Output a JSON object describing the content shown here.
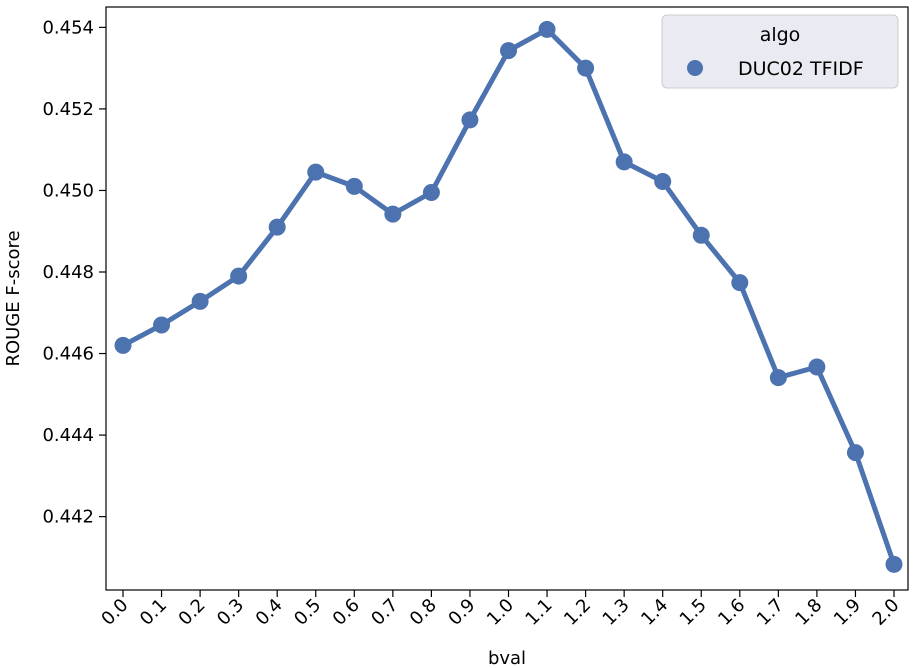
{
  "chart_data": {
    "type": "line",
    "xlabel": "bval",
    "ylabel": "ROUGE F-score",
    "x_tick_labels": [
      "0.0",
      "0.1",
      "0.2",
      "0.3",
      "0.4",
      "0.5",
      "0.6",
      "0.7",
      "0.8",
      "0.9",
      "1.0",
      "1.1",
      "1.2",
      "1.3",
      "1.4",
      "1.5",
      "1.6",
      "1.7",
      "1.8",
      "1.9",
      "2.0"
    ],
    "y_tick_labels": [
      "0.442",
      "0.444",
      "0.446",
      "0.448",
      "0.450",
      "0.452",
      "0.454"
    ],
    "y_ticks": [
      0.442,
      0.444,
      0.446,
      0.448,
      0.45,
      0.452,
      0.454
    ],
    "ylim": [
      0.4402,
      0.4545
    ],
    "grid": false,
    "legend": {
      "title": "algo",
      "placement": "top-right"
    },
    "series": [
      {
        "name": "DUC02 TFIDF",
        "color": "#4c72b0",
        "values": [
          0.4462,
          0.4467,
          0.44728,
          0.4479,
          0.4491,
          0.45045,
          0.4501,
          0.44942,
          0.44995,
          0.45173,
          0.45343,
          0.45395,
          0.453,
          0.4507,
          0.45022,
          0.4489,
          0.44774,
          0.44541,
          0.44567,
          0.44357,
          0.44083
        ]
      }
    ]
  }
}
